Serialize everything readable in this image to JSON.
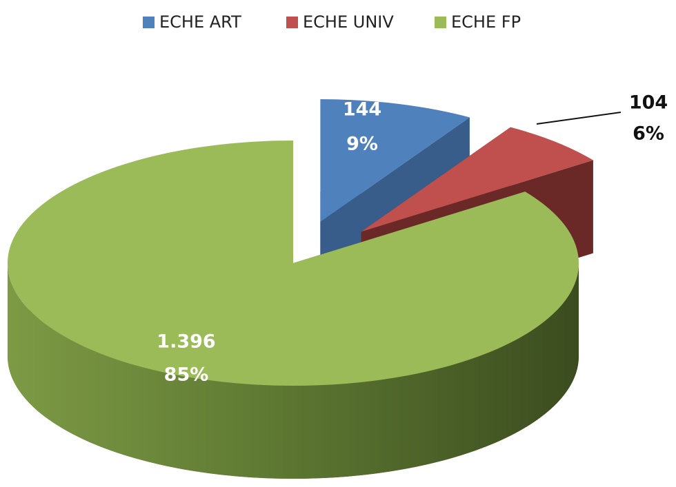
{
  "chart_data": {
    "type": "pie3d",
    "categories": [
      "ECHE ART",
      "ECHE UNIV",
      "ECHE FP"
    ],
    "values": [
      144,
      104,
      1396
    ],
    "value_labels": [
      "144",
      "104",
      "1.396"
    ],
    "percents": [
      9,
      6,
      85
    ],
    "percent_labels": [
      "9%",
      "6%",
      "85%"
    ],
    "colors": [
      "#4f81bd",
      "#c0504d",
      "#9bbb59"
    ],
    "legend": "top"
  }
}
